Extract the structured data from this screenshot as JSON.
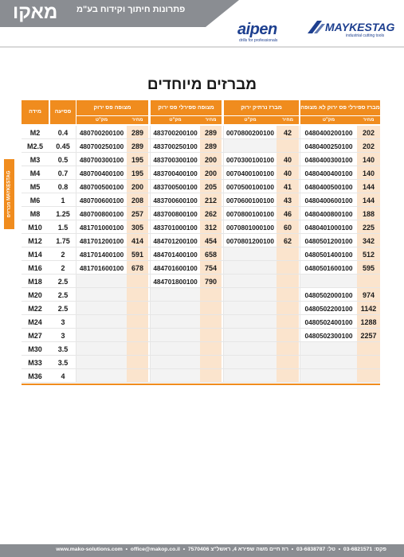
{
  "header": {
    "brand": "מאקו",
    "subtitle": "פתרונות חיתוך וקידוח בע\"מ",
    "aipen_logo": "aipen",
    "aipen_tagline": "drills for professionals",
    "maykestag_logo": "MAYKESTAG",
    "maykestag_tagline": "industrial cutting tools"
  },
  "side_tab": "מברזים MAYKESTAG",
  "title": "מברזים מיוחדים",
  "table": {
    "headers": {
      "size": "מידה",
      "pitch": "פסיעה",
      "g1": "מצופה פס ירוק",
      "g2": "מצופה ספירלי פס ירוק",
      "g3": "מברז נרתיק ירוק",
      "g4": "מברז ספירלי פס ירוק לא מצופה",
      "code": "מק\"ט",
      "price": "מחיר"
    },
    "rows": [
      {
        "size": "M2",
        "pitch": "0.4",
        "c1": "480700200100",
        "p1": "289",
        "c2": "483700200100",
        "p2": "289",
        "c3": "0070800200100",
        "p3": "42",
        "c4": "0480400200100",
        "p4": "202"
      },
      {
        "size": "M2.5",
        "pitch": "0.45",
        "c1": "480700250100",
        "p1": "289",
        "c2": "483700250100",
        "p2": "289",
        "c3": "",
        "p3": "",
        "c4": "0480400250100",
        "p4": "202"
      },
      {
        "size": "M3",
        "pitch": "0.5",
        "c1": "480700300100",
        "p1": "195",
        "c2": "483700300100",
        "p2": "200",
        "c3": "0070300100100",
        "p3": "40",
        "c4": "0480400300100",
        "p4": "140"
      },
      {
        "size": "M4",
        "pitch": "0.7",
        "c1": "480700400100",
        "p1": "195",
        "c2": "483700400100",
        "p2": "200",
        "c3": "0070400100100",
        "p3": "40",
        "c4": "0480400400100",
        "p4": "140"
      },
      {
        "size": "M5",
        "pitch": "0.8",
        "c1": "480700500100",
        "p1": "200",
        "c2": "483700500100",
        "p2": "205",
        "c3": "0070500100100",
        "p3": "41",
        "c4": "0480400500100",
        "p4": "144"
      },
      {
        "size": "M6",
        "pitch": "1",
        "c1": "480700600100",
        "p1": "208",
        "c2": "483700600100",
        "p2": "212",
        "c3": "0070600100100",
        "p3": "43",
        "c4": "0480400600100",
        "p4": "144"
      },
      {
        "size": "M8",
        "pitch": "1.25",
        "c1": "480700800100",
        "p1": "257",
        "c2": "483700800100",
        "p2": "262",
        "c3": "0070800100100",
        "p3": "46",
        "c4": "0480400800100",
        "p4": "188"
      },
      {
        "size": "M10",
        "pitch": "1.5",
        "c1": "481701000100",
        "p1": "305",
        "c2": "483701000100",
        "p2": "312",
        "c3": "0070801000100",
        "p3": "60",
        "c4": "0480401000100",
        "p4": "225"
      },
      {
        "size": "M12",
        "pitch": "1.75",
        "c1": "481701200100",
        "p1": "414",
        "c2": "484701200100",
        "p2": "454",
        "c3": "0070801200100",
        "p3": "62",
        "c4": "0480501200100",
        "p4": "342"
      },
      {
        "size": "M14",
        "pitch": "2",
        "c1": "481701400100",
        "p1": "591",
        "c2": "484701400100",
        "p2": "658",
        "c3": "",
        "p3": "",
        "c4": "0480501400100",
        "p4": "512"
      },
      {
        "size": "M16",
        "pitch": "2",
        "c1": "481701600100",
        "p1": "678",
        "c2": "484701600100",
        "p2": "754",
        "c3": "",
        "p3": "",
        "c4": "0480501600100",
        "p4": "595"
      },
      {
        "size": "M18",
        "pitch": "2.5",
        "c1": "",
        "p1": "",
        "c2": "484701800100",
        "p2": "790",
        "c3": "",
        "p3": "",
        "c4": "",
        "p4": ""
      },
      {
        "size": "M20",
        "pitch": "2.5",
        "c1": "",
        "p1": "",
        "c2": "",
        "p2": "",
        "c3": "",
        "p3": "",
        "c4": "0480502000100",
        "p4": "974"
      },
      {
        "size": "M22",
        "pitch": "2.5",
        "c1": "",
        "p1": "",
        "c2": "",
        "p2": "",
        "c3": "",
        "p3": "",
        "c4": "0480502200100",
        "p4": "1142"
      },
      {
        "size": "M24",
        "pitch": "3",
        "c1": "",
        "p1": "",
        "c2": "",
        "p2": "",
        "c3": "",
        "p3": "",
        "c4": "0480502400100",
        "p4": "1288"
      },
      {
        "size": "M27",
        "pitch": "3",
        "c1": "",
        "p1": "",
        "c2": "",
        "p2": "",
        "c3": "",
        "p3": "",
        "c4": "0480502300100",
        "p4": "2257"
      },
      {
        "size": "M30",
        "pitch": "3.5",
        "c1": "",
        "p1": "",
        "c2": "",
        "p2": "",
        "c3": "",
        "p3": "",
        "c4": "",
        "p4": ""
      },
      {
        "size": "M33",
        "pitch": "3.5",
        "c1": "",
        "p1": "",
        "c2": "",
        "p2": "",
        "c3": "",
        "p3": "",
        "c4": "",
        "p4": ""
      },
      {
        "size": "M36",
        "pitch": "4",
        "c1": "",
        "p1": "",
        "c2": "",
        "p2": "",
        "c3": "",
        "p3": "",
        "c4": "",
        "p4": ""
      }
    ]
  },
  "footer": {
    "website": "www.mako-solutions.com",
    "email": "office@makop.co.il",
    "phone": "טל: 03-6838787",
    "fax": "פקס: 03-6821571",
    "address": "רוז חיים משה שפירא 4, ראשל\"צ 7570406"
  },
  "colors": {
    "accent": "#f08c1e",
    "price_column": "#fbe4cd",
    "header_band": "#8a8d92",
    "logo_blue": "#1d3f8f"
  }
}
